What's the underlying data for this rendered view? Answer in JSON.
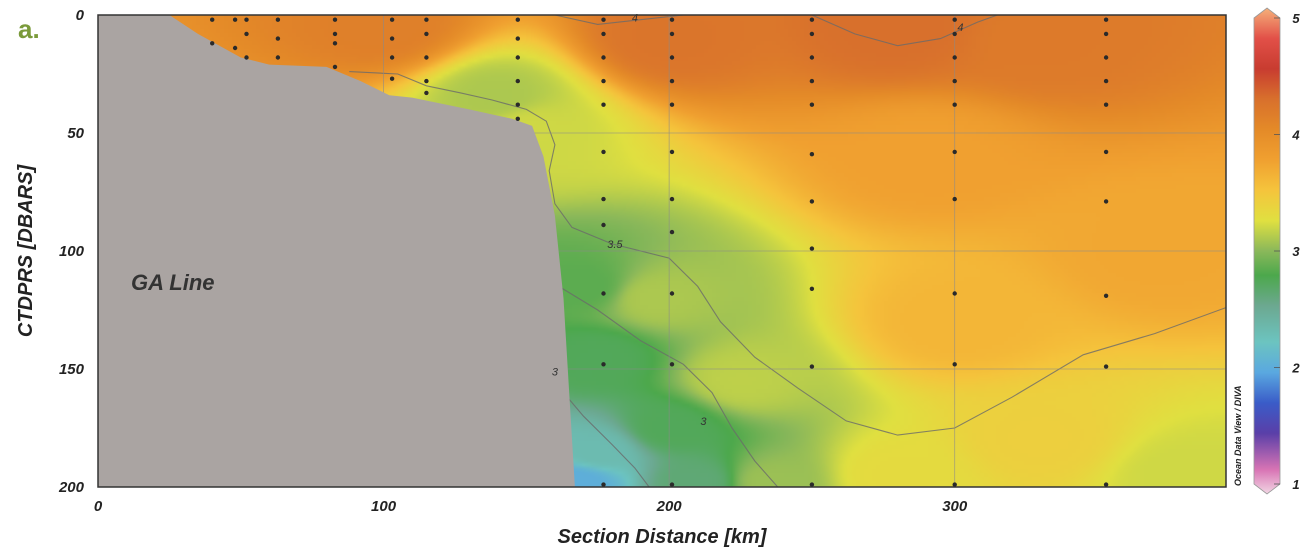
{
  "panel_label": "a.",
  "chart_data": {
    "type": "heatmap",
    "xlabel": "Section Distance [km]",
    "ylabel": "CTDPRS [DBARS]",
    "xlim": [
      0,
      395
    ],
    "ylim": [
      200,
      0
    ],
    "x_ticks": [
      0,
      100,
      200,
      300
    ],
    "y_ticks": [
      0,
      50,
      100,
      150,
      200
    ],
    "grid": true,
    "annotation": "GA Line",
    "credit": "Ocean Data View / DIVA",
    "colorbar": {
      "range": [
        1,
        5
      ],
      "ticks": [
        1,
        2,
        3,
        4,
        5
      ],
      "stops": [
        {
          "v": 1.0,
          "color": "#f2d6e4"
        },
        {
          "v": 1.2,
          "color": "#d874b4"
        },
        {
          "v": 1.5,
          "color": "#5a3fa8"
        },
        {
          "v": 1.75,
          "color": "#3a5cc8"
        },
        {
          "v": 2.0,
          "color": "#5aa8e0"
        },
        {
          "v": 2.25,
          "color": "#6cc4c0"
        },
        {
          "v": 2.55,
          "color": "#6ca890"
        },
        {
          "v": 2.8,
          "color": "#4ca84c"
        },
        {
          "v": 3.0,
          "color": "#8ab85a"
        },
        {
          "v": 3.25,
          "color": "#e0e040"
        },
        {
          "v": 3.5,
          "color": "#f5c43c"
        },
        {
          "v": 3.75,
          "color": "#f0a030"
        },
        {
          "v": 4.0,
          "color": "#e48a28"
        },
        {
          "v": 4.25,
          "color": "#d8702c"
        },
        {
          "v": 4.5,
          "color": "#c83c30"
        },
        {
          "v": 4.75,
          "color": "#e25048"
        },
        {
          "v": 5.0,
          "color": "#f5b07a"
        }
      ]
    },
    "contour_labels": [
      {
        "text": "4",
        "x": 188,
        "y": 1
      },
      {
        "text": "4",
        "x": 302,
        "y": 5
      },
      {
        "text": "3.5",
        "x": 181,
        "y": 97
      },
      {
        "text": "3",
        "x": 160,
        "y": 151
      },
      {
        "text": "3",
        "x": 212,
        "y": 172
      }
    ],
    "contours": [
      {
        "level": 4.0,
        "points": [
          [
            160,
            0
          ],
          [
            175,
            4
          ],
          [
            190,
            2
          ],
          [
            205,
            0
          ]
        ]
      },
      {
        "level": 4.0,
        "points": [
          [
            250,
            0
          ],
          [
            265,
            8
          ],
          [
            280,
            13
          ],
          [
            295,
            10
          ],
          [
            308,
            3
          ],
          [
            315,
            0
          ]
        ]
      },
      {
        "level": 3.5,
        "points": [
          [
            88,
            24
          ],
          [
            105,
            25
          ],
          [
            115,
            30
          ],
          [
            127,
            33
          ],
          [
            138,
            36
          ],
          [
            150,
            40
          ],
          [
            157,
            45
          ],
          [
            160,
            55
          ],
          [
            158,
            66
          ],
          [
            160,
            80
          ],
          [
            166,
            90
          ],
          [
            180,
            97
          ],
          [
            200,
            103
          ],
          [
            210,
            115
          ],
          [
            218,
            130
          ],
          [
            230,
            145
          ],
          [
            245,
            158
          ],
          [
            262,
            172
          ],
          [
            280,
            178
          ],
          [
            300,
            175
          ],
          [
            320,
            162
          ],
          [
            345,
            144
          ],
          [
            370,
            135
          ],
          [
            395,
            124
          ]
        ]
      },
      {
        "level": 3.0,
        "points": [
          [
            160,
            114
          ],
          [
            175,
            125
          ],
          [
            190,
            138
          ],
          [
            205,
            148
          ],
          [
            215,
            160
          ],
          [
            222,
            175
          ],
          [
            230,
            189
          ],
          [
            238,
            200
          ]
        ]
      },
      {
        "level": 2.5,
        "points": [
          [
            163,
            160
          ],
          [
            170,
            170
          ],
          [
            180,
            182
          ],
          [
            188,
            192
          ],
          [
            193,
            200
          ]
        ]
      }
    ],
    "field_anchors": [
      {
        "x": 140,
        "y": 35,
        "v": 3.1
      },
      {
        "x": 150,
        "y": 48,
        "v": 3.2
      },
      {
        "x": 170,
        "y": 115,
        "v": 2.85
      },
      {
        "x": 175,
        "y": 145,
        "v": 2.75
      },
      {
        "x": 175,
        "y": 185,
        "v": 2.35
      },
      {
        "x": 168,
        "y": 198,
        "v": 2.05
      },
      {
        "x": 195,
        "y": 120,
        "v": 3.1
      },
      {
        "x": 200,
        "y": 175,
        "v": 2.75
      },
      {
        "x": 210,
        "y": 198,
        "v": 2.65
      },
      {
        "x": 225,
        "y": 155,
        "v": 3.15
      },
      {
        "x": 235,
        "y": 198,
        "v": 3.05
      },
      {
        "x": 200,
        "y": 10,
        "v": 4.2
      },
      {
        "x": 280,
        "y": 5,
        "v": 4.25
      },
      {
        "x": 330,
        "y": 10,
        "v": 4.15
      },
      {
        "x": 100,
        "y": 5,
        "v": 4.1
      },
      {
        "x": 290,
        "y": 60,
        "v": 3.75
      },
      {
        "x": 300,
        "y": 130,
        "v": 3.6
      },
      {
        "x": 370,
        "y": 100,
        "v": 3.7
      },
      {
        "x": 280,
        "y": 195,
        "v": 3.3
      },
      {
        "x": 380,
        "y": 195,
        "v": 3.2
      },
      {
        "x": 330,
        "y": 180,
        "v": 3.4
      }
    ],
    "topography": [
      [
        25,
        0
      ],
      [
        35,
        8
      ],
      [
        50,
        18
      ],
      [
        60,
        21
      ],
      [
        80,
        22
      ],
      [
        92,
        28
      ],
      [
        102,
        34
      ],
      [
        110,
        35
      ],
      [
        130,
        40
      ],
      [
        145,
        44
      ],
      [
        152,
        47
      ],
      [
        156,
        60
      ],
      [
        160,
        85
      ],
      [
        163,
        120
      ],
      [
        165,
        160
      ],
      [
        167,
        200
      ]
    ],
    "stations": [
      {
        "x": 40,
        "depths": [
          2,
          12
        ]
      },
      {
        "x": 48,
        "depths": [
          2,
          14
        ]
      },
      {
        "x": 52,
        "depths": [
          2,
          8,
          18
        ]
      },
      {
        "x": 63,
        "depths": [
          2,
          10,
          18
        ]
      },
      {
        "x": 83,
        "depths": [
          2,
          8,
          12,
          22
        ]
      },
      {
        "x": 103,
        "depths": [
          2,
          10,
          18,
          27
        ]
      },
      {
        "x": 115,
        "depths": [
          2,
          8,
          18,
          28,
          33
        ]
      },
      {
        "x": 147,
        "depths": [
          2,
          10,
          18,
          28,
          38,
          44
        ]
      },
      {
        "x": 177,
        "depths": [
          2,
          8,
          18,
          28,
          38,
          58,
          78,
          89,
          118,
          148,
          199
        ]
      },
      {
        "x": 201,
        "depths": [
          2,
          8,
          18,
          28,
          38,
          58,
          78,
          92,
          118,
          148,
          199
        ]
      },
      {
        "x": 250,
        "depths": [
          2,
          8,
          18,
          28,
          38,
          59,
          79,
          99,
          116,
          149,
          199
        ]
      },
      {
        "x": 300,
        "depths": [
          2,
          8,
          18,
          28,
          38,
          58,
          78,
          118,
          148,
          199
        ]
      },
      {
        "x": 353,
        "depths": [
          2,
          8,
          18,
          28,
          38,
          58,
          79,
          119,
          149,
          199
        ]
      }
    ]
  }
}
